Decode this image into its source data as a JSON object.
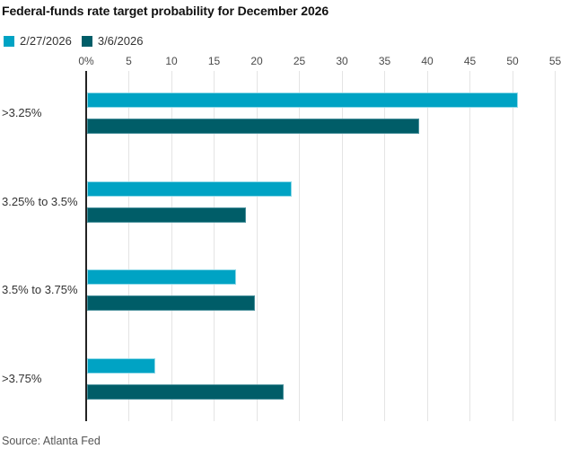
{
  "title": "Federal-funds rate target probability for December 2026",
  "source": "Source: Atlanta Fed",
  "colors": {
    "series_1": "#00a3c4",
    "series_2": "#005d68",
    "axis_line": "#222222",
    "gridline": "#e4e4e4"
  },
  "chart_data": {
    "type": "bar",
    "orientation": "horizontal",
    "title": "Federal-funds rate target probability for December 2026",
    "categories": [
      ">3.25%",
      "3.25% to 3.5%",
      "3.5% to 3.75%",
      ">3.75%"
    ],
    "series": [
      {
        "name": "2/27/2026",
        "color": "#00a3c4",
        "values": [
          50.5,
          24,
          17.5,
          8
        ]
      },
      {
        "name": "3/6/2026",
        "color": "#005d68",
        "values": [
          38.9,
          18.6,
          19.7,
          23
        ]
      }
    ],
    "xlim": [
      0,
      55
    ],
    "xticks": [
      0,
      5,
      10,
      15,
      20,
      25,
      30,
      35,
      40,
      45,
      50,
      55
    ],
    "xtick_labels": [
      "0%",
      "5",
      "10",
      "15",
      "20",
      "25",
      "30",
      "35",
      "40",
      "45",
      "50",
      "55"
    ],
    "unit": "percent",
    "grid": true,
    "legend_position": "top-left",
    "source": "Source: Atlanta Fed"
  }
}
